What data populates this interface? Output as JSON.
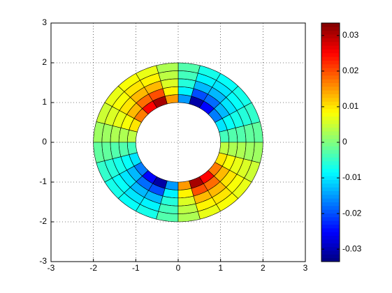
{
  "chart_data": {
    "type": "surface",
    "colormap": "jet",
    "grid": true,
    "xlim": [
      -3,
      3
    ],
    "ylim": [
      -3,
      3
    ],
    "xticks": [
      -3,
      -2,
      -1,
      0,
      1,
      2,
      3
    ],
    "yticks": [
      -3,
      -2,
      -1,
      0,
      1,
      2,
      3
    ],
    "r": [
      1,
      1.2,
      1.4,
      1.6,
      1.8,
      2
    ],
    "theta": [
      0,
      15,
      30,
      45,
      60,
      75,
      90,
      105,
      120,
      135,
      150,
      165,
      180,
      195,
      210,
      225,
      240,
      255,
      270,
      285,
      300,
      315,
      330,
      345,
      360
    ],
    "values": [
      [
        -0.004,
        -0.003,
        -0.003,
        -0.002,
        -0.002
      ],
      [
        -0.01,
        -0.008,
        -0.007,
        -0.006,
        -0.005
      ],
      [
        -0.017,
        -0.013,
        -0.01,
        -0.008,
        -0.007
      ],
      [
        -0.025,
        -0.018,
        -0.013,
        -0.01,
        -0.008
      ],
      [
        -0.031,
        -0.02,
        -0.013,
        -0.009,
        -0.007
      ],
      [
        -0.015,
        -0.009,
        -0.006,
        -0.004,
        -0.003
      ],
      [
        0.015,
        0.009,
        0.006,
        0.004,
        0.003
      ],
      [
        0.031,
        0.02,
        0.013,
        0.009,
        0.007
      ],
      [
        0.025,
        0.018,
        0.013,
        0.01,
        0.008
      ],
      [
        0.017,
        0.013,
        0.01,
        0.008,
        0.007
      ],
      [
        0.01,
        0.008,
        0.007,
        0.006,
        0.005
      ],
      [
        0.004,
        0.003,
        0.003,
        0.002,
        0.002
      ],
      [
        -0.004,
        -0.003,
        -0.003,
        -0.002,
        -0.002
      ],
      [
        -0.01,
        -0.008,
        -0.007,
        -0.006,
        -0.005
      ],
      [
        -0.017,
        -0.013,
        -0.01,
        -0.008,
        -0.007
      ],
      [
        -0.025,
        -0.018,
        -0.013,
        -0.01,
        -0.008
      ],
      [
        -0.031,
        -0.02,
        -0.013,
        -0.009,
        -0.007
      ],
      [
        -0.015,
        -0.009,
        -0.006,
        -0.004,
        -0.003
      ],
      [
        0.015,
        0.009,
        0.006,
        0.004,
        0.003
      ],
      [
        0.031,
        0.02,
        0.013,
        0.009,
        0.007
      ],
      [
        0.025,
        0.018,
        0.013,
        0.01,
        0.008
      ],
      [
        0.017,
        0.013,
        0.01,
        0.008,
        0.007
      ],
      [
        0.01,
        0.008,
        0.007,
        0.006,
        0.005
      ],
      [
        0.004,
        0.003,
        0.003,
        0.002,
        0.002
      ]
    ],
    "clim": [
      -0.0335,
      0.0335
    ],
    "cticks": [
      -0.03,
      -0.02,
      -0.01,
      0,
      0.01,
      0.02,
      0.03
    ]
  }
}
